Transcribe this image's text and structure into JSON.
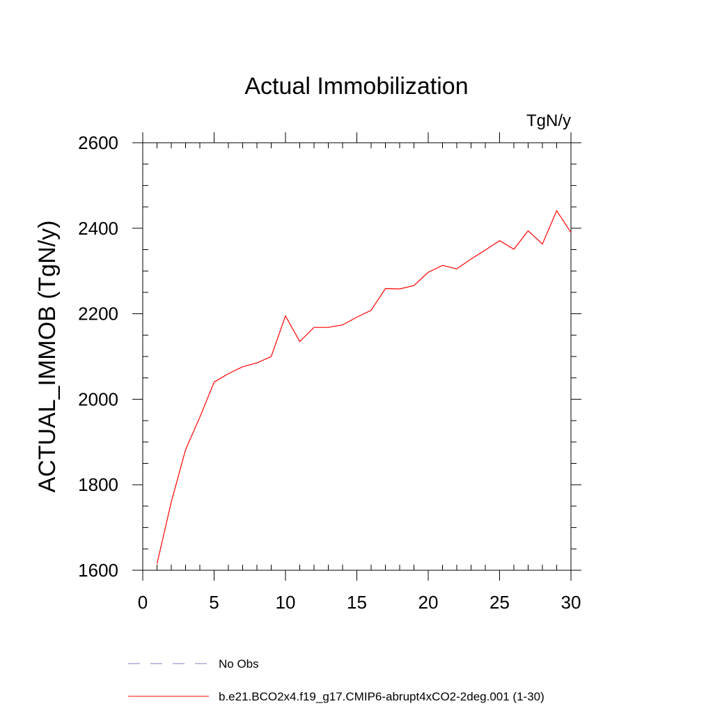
{
  "chart_data": {
    "type": "line",
    "title": "Actual Immobilization",
    "units": "TgN/y",
    "xlabel": "",
    "ylabel": "ACTUAL_IMMOB  (TgN/y)",
    "xlim": [
      0,
      30
    ],
    "ylim": [
      1600,
      2600
    ],
    "xticks": [
      0,
      5,
      10,
      15,
      20,
      25,
      30
    ],
    "yticks": [
      1600,
      1800,
      2000,
      2200,
      2400,
      2600
    ],
    "x_minor_step": 1,
    "y_minor_step": 50,
    "grid": false,
    "series": [
      {
        "name": "b.e21.BCO2x4.f19_g17.CMIP6-abrupt4xCO2-2deg.001 (1-30)",
        "color": "#ff0000",
        "dash": "solid",
        "x": [
          1,
          2,
          3,
          4,
          5,
          6,
          7,
          8,
          9,
          10,
          11,
          12,
          13,
          14,
          15,
          16,
          17,
          18,
          19,
          20,
          21,
          22,
          23,
          24,
          25,
          26,
          27,
          28,
          29,
          30
        ],
        "values": [
          1615,
          1760,
          1882,
          1958,
          2040,
          2060,
          2076,
          2085,
          2100,
          2195,
          2135,
          2168,
          2168,
          2174,
          2192,
          2208,
          2259,
          2258,
          2266,
          2297,
          2313,
          2305,
          2328,
          2349,
          2371,
          2351,
          2394,
          2363,
          2441,
          2390
        ]
      }
    ],
    "legend": [
      {
        "label": "No Obs",
        "color": "#7f7fbf",
        "dash": "dashed"
      },
      {
        "label": "b.e21.BCO2x4.f19_g17.CMIP6-abrupt4xCO2-2deg.001 (1-30)",
        "color": "#ff0000",
        "dash": "solid"
      }
    ],
    "legend_position": "bottom"
  }
}
